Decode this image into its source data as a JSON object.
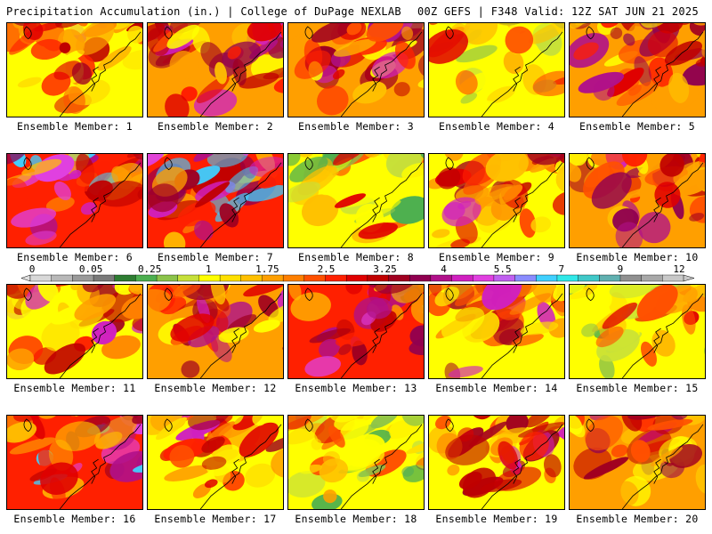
{
  "header": {
    "title": "Precipitation Accumulation (in.) | College of DuPage NEXLAB",
    "run_info": "00Z GEFS | F348 Valid: 12Z SAT JUN 21 2025"
  },
  "colorbar": {
    "labels": [
      "0",
      "0.05",
      "0.25",
      "1",
      "1.75",
      "2.5",
      "3.25",
      "4",
      "5.5",
      "7",
      "9",
      "12"
    ],
    "colors": [
      "#d8d8d8",
      "#b8b8b8",
      "#9a9a9a",
      "#7a7a7a",
      "#2e7d32",
      "#4caf50",
      "#8bc34a",
      "#c6e03a",
      "#ffff00",
      "#ffe000",
      "#ffc000",
      "#ff9f00",
      "#ff7f00",
      "#ff5000",
      "#ff2000",
      "#e00000",
      "#c00000",
      "#a00020",
      "#900050",
      "#b0108a",
      "#d020c0",
      "#e040e0",
      "#c060f0",
      "#8a8cff",
      "#40d0ff",
      "#30e8e8",
      "#40c8c8",
      "#60b0b0",
      "#909090",
      "#a8a8a8",
      "#c8c8c8"
    ]
  },
  "members": [
    {
      "label": "Ensemble Member: 1",
      "tone": "warm",
      "seed": 1
    },
    {
      "label": "Ensemble Member: 2",
      "tone": "hot",
      "seed": 2
    },
    {
      "label": "Ensemble Member: 3",
      "tone": "hot",
      "seed": 3
    },
    {
      "label": "Ensemble Member: 4",
      "tone": "mild",
      "seed": 4
    },
    {
      "label": "Ensemble Member: 5",
      "tone": "hot",
      "seed": 5
    },
    {
      "label": "Ensemble Member: 6",
      "tone": "wet",
      "seed": 6
    },
    {
      "label": "Ensemble Member: 7",
      "tone": "wet",
      "seed": 7
    },
    {
      "label": "Ensemble Member: 8",
      "tone": "mild",
      "seed": 8
    },
    {
      "label": "Ensemble Member: 9",
      "tone": "warm",
      "seed": 9
    },
    {
      "label": "Ensemble Member: 10",
      "tone": "hot",
      "seed": 10
    },
    {
      "label": "Ensemble Member: 11",
      "tone": "warm",
      "seed": 11
    },
    {
      "label": "Ensemble Member: 12",
      "tone": "hot",
      "seed": 12
    },
    {
      "label": "Ensemble Member: 13",
      "tone": "wet",
      "seed": 13
    },
    {
      "label": "Ensemble Member: 14",
      "tone": "warm",
      "seed": 14
    },
    {
      "label": "Ensemble Member: 15",
      "tone": "mild",
      "seed": 15
    },
    {
      "label": "Ensemble Member: 16",
      "tone": "wet",
      "seed": 16
    },
    {
      "label": "Ensemble Member: 17",
      "tone": "warm",
      "seed": 17
    },
    {
      "label": "Ensemble Member: 18",
      "tone": "mild",
      "seed": 18
    },
    {
      "label": "Ensemble Member: 19",
      "tone": "warm",
      "seed": 19
    },
    {
      "label": "Ensemble Member: 20",
      "tone": "hot",
      "seed": 20
    }
  ]
}
